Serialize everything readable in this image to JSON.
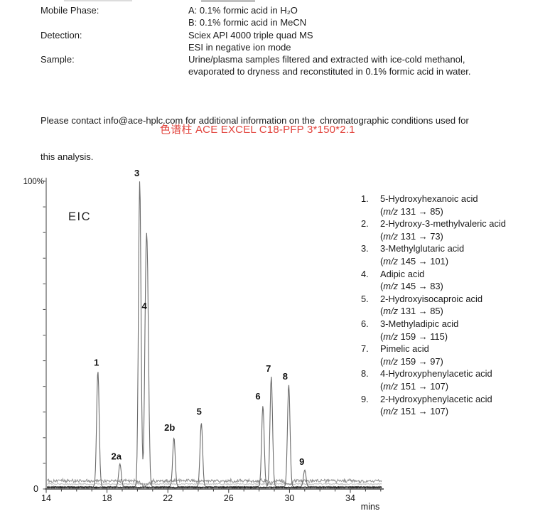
{
  "specs": {
    "rows": [
      {
        "label": "Mobile Phase:",
        "lines": [
          "A: 0.1% formic acid in H₂O",
          "B: 0.1% formic acid in MeCN"
        ]
      },
      {
        "label": "Detection:",
        "lines": [
          "Sciex API 4000 triple quad MS",
          "ESI in negative ion mode"
        ]
      },
      {
        "label": "Sample:",
        "lines": [
          "Urine/plasma samples filtered and extracted with ice-cold methanol,",
          "evaporated to dryness and reconstituted in 0.1% formic acid in water."
        ]
      }
    ]
  },
  "contact": {
    "line1": "Please contact info@ace-hplc.com for additional information on the  chromatographic conditions used for",
    "line2": "this analysis."
  },
  "column_title": {
    "text": "色谱柱 ACE EXCEL C18-PFP 3*150*2.1",
    "color": "#e2443d"
  },
  "chart_data": {
    "type": "line",
    "title": "EIC",
    "xlabel": "mins",
    "x_range": [
      14,
      36
    ],
    "x_ticks": [
      14,
      18,
      22,
      26,
      30,
      34
    ],
    "y_axis": {
      "top_label": "100%",
      "bottom_label": "0",
      "unit": "percent",
      "range": [
        0,
        100
      ]
    },
    "grid": false,
    "legend_position": "right",
    "peaks": [
      {
        "label": "1",
        "time": 17.4,
        "height_pct": 38,
        "label_dx": -2
      },
      {
        "label": "2a",
        "time": 18.85,
        "height_pct": 7.5,
        "label_dx": -5,
        "label_dy": -6
      },
      {
        "label": "3",
        "time": 20.15,
        "height_pct": 100,
        "label_dx": -4
      },
      {
        "label": "4",
        "time": 20.55,
        "height_pct": 56,
        "label_dx": -2,
        "label_dy": -9
      },
      {
        "label": "",
        "time": 20.67,
        "height_pct": 51
      },
      {
        "label": "2b",
        "time": 22.4,
        "height_pct": 16,
        "label_dx": -6,
        "label_dy": -10
      },
      {
        "label": "5",
        "time": 24.2,
        "height_pct": 21,
        "label_dx": -3,
        "label_dy": -11
      },
      {
        "label": "6",
        "time": 28.25,
        "height_pct": 26.5,
        "label_dx": -7,
        "label_dy": -9
      },
      {
        "label": "7",
        "time": 28.8,
        "height_pct": 36,
        "label_dx": -4
      },
      {
        "label": "8",
        "time": 29.95,
        "height_pct": 33.5,
        "label_dx": -5
      },
      {
        "label": "9",
        "time": 31.0,
        "height_pct": 5.5,
        "label_dx": -4
      }
    ],
    "legend": [
      {
        "num": "1.",
        "name": "5-Hydroxyhexanoic acid",
        "mz_pre": "(",
        "mz_italic": "m/z",
        "mz_post": " 131 → 85)"
      },
      {
        "num": "2.",
        "name": "2-Hydroxy-3-methylvaleric acid",
        "mz_pre": "(",
        "mz_italic": "m/z",
        "mz_post": " 131 → 73)"
      },
      {
        "num": "3.",
        "name": "3-Methylglutaric acid",
        "mz_pre": "(",
        "mz_italic": "m/z",
        "mz_post": " 145 → 101)"
      },
      {
        "num": "4.",
        "name": "Adipic acid",
        "mz_pre": "(",
        "mz_italic": "m/z",
        "mz_post": " 145 → 83)"
      },
      {
        "num": "5.",
        "name": "2-Hydroxyisocaproic acid",
        "mz_pre": "(",
        "mz_italic": "m/z",
        "mz_post": " 131 → 85)"
      },
      {
        "num": "6.",
        "name": "3-Methyladipic acid",
        "mz_pre": "(",
        "mz_italic": "m/z",
        "mz_post": " 159 → 115)"
      },
      {
        "num": "7.",
        "name": "Pimelic acid",
        "mz_pre": "(",
        "mz_italic": "m/z",
        "mz_post": " 159 → 97)"
      },
      {
        "num": "8.",
        "name": "4-Hydroxyphenylacetic acid",
        "mz_pre": "(",
        "mz_italic": "m/z",
        "mz_post": " 151 → 107)"
      },
      {
        "num": "9.",
        "name": "2-Hydroxyphenylacetic acid",
        "mz_pre": "(",
        "mz_italic": "m/z",
        "mz_post": " 151 → 107)"
      }
    ],
    "trace_colors": {
      "peaks": "#6b6b6b",
      "noise": "#8f8f8f",
      "flat_light": "#bfbfbf",
      "flat_dark": "#1d1d1d"
    }
  }
}
